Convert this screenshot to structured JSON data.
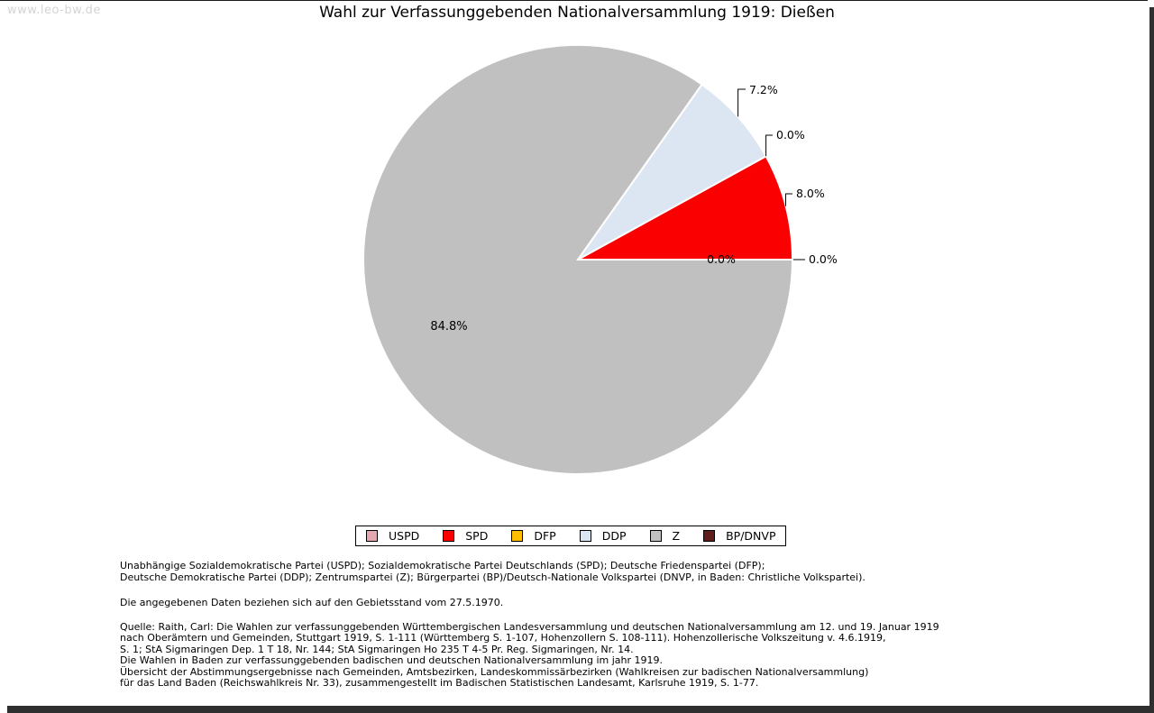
{
  "watermark": "www.leo-bw.de",
  "chart_data": {
    "type": "pie",
    "title": "Wahl zur Verfassunggebenden Nationalversammlung 1919: Dießen",
    "start_angle_deg": 0,
    "direction": "counterclockwise",
    "legend_position": "bottom",
    "slices": [
      {
        "label": "USPD",
        "value": 0.0,
        "pct": "0.0%",
        "color": "#E4A8B0"
      },
      {
        "label": "SPD",
        "value": 8.0,
        "pct": "8.0%",
        "color": "#FB0000"
      },
      {
        "label": "DFP",
        "value": 0.0,
        "pct": "0.0%",
        "color": "#FFBF00"
      },
      {
        "label": "DDP",
        "value": 7.2,
        "pct": "7.2%",
        "color": "#DCE6F2"
      },
      {
        "label": "Z",
        "value": 84.8,
        "pct": "84.8%",
        "color": "#C0C0C0"
      },
      {
        "label": "BP/DNVP",
        "value": 0.0,
        "pct": "0.0%",
        "color": "#5F1E1E"
      }
    ]
  },
  "footnotes": {
    "parties_lines": [
      "Unabhängige Sozialdemokratische Partei (USPD); Sozialdemokratische Partei Deutschlands (SPD); Deutsche Friedenspartei (DFP);",
      "Deutsche Demokratische Partei (DDP); Zentrumspartei (Z); Bürgerpartei (BP)/Deutsch-Nationale Volkspartei (DNVP, in Baden: Christliche Volkspartei)."
    ],
    "gebietsstand": "Die angegebenen Daten beziehen sich auf den Gebietsstand vom 27.5.1970.",
    "source_lines": [
      "Quelle: Raith, Carl: Die Wahlen zur verfassunggebenden Württembergischen Landesversammlung und deutschen Nationalversammlung am 12. und 19. Januar 1919",
      "nach Oberämtern und Gemeinden, Stuttgart 1919, S. 1-111 (Württemberg S. 1-107, Hohenzollern S. 108-111). Hohenzollerische Volkszeitung v. 4.6.1919,",
      "S. 1; StA Sigmaringen Dep. 1 T 18, Nr. 144; StA Sigmaringen Ho 235 T 4-5 Pr. Reg. Sigmaringen, Nr. 14.",
      "Die Wahlen in Baden zur verfassunggebenden badischen und deutschen Nationalversammlung im jahr 1919.",
      "Übersicht der Abstimmungsergebnisse nach Gemeinden, Amtsbezirken, Landeskommissärbezirken (Wahlkreisen zur badischen Nationalversammlung)",
      "für das Land Baden (Reichswahlkreis Nr. 33), zusammengestellt im Badischen Statistischen Landesamt, Karlsruhe 1919, S. 1-77."
    ]
  }
}
